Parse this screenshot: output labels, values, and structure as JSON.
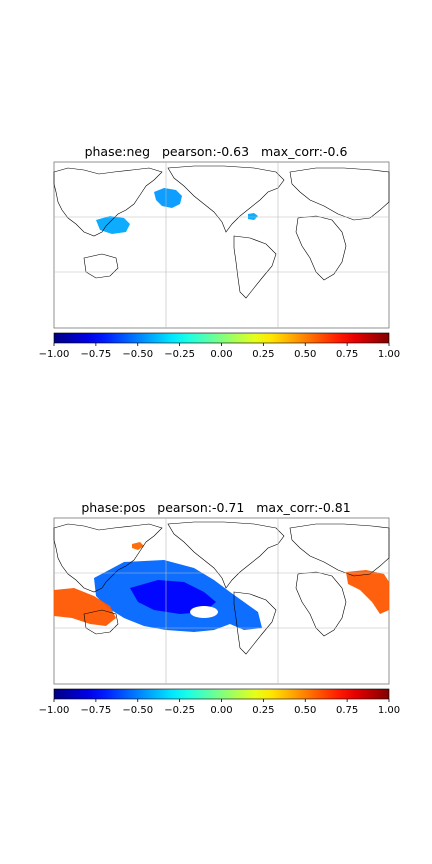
{
  "chart_data": [
    {
      "type": "heatmap",
      "title": "phase:neg   pearson:-0.63   max_corr:-0.6",
      "map": "world-correlation-map",
      "colormap": "jet",
      "colorbar": {
        "vmin": -1.0,
        "vmax": 1.0,
        "ticks": [
          -1.0,
          -0.75,
          -0.5,
          -0.25,
          0.0,
          0.25,
          0.5,
          0.75,
          1.0
        ],
        "tick_labels": [
          "−1.00",
          "−0.75",
          "−0.50",
          "−0.25",
          "0.00",
          "0.25",
          "0.50",
          "0.75",
          "1.00"
        ]
      },
      "grid": true,
      "patches": [
        {
          "region": "north-pacific-gulf-of-alaska",
          "value": -0.45
        },
        {
          "region": "west-central-pacific",
          "value": -0.42
        },
        {
          "region": "north-atlantic-near-coast",
          "value": -0.42
        }
      ]
    },
    {
      "type": "heatmap",
      "title": "phase:pos   pearson:-0.71   max_corr:-0.81",
      "map": "world-correlation-map",
      "colormap": "jet",
      "colorbar": {
        "vmin": -1.0,
        "vmax": 1.0,
        "ticks": [
          -1.0,
          -0.75,
          -0.5,
          -0.25,
          0.0,
          0.25,
          0.5,
          0.75,
          1.0
        ],
        "tick_labels": [
          "−1.00",
          "−0.75",
          "−0.50",
          "−0.25",
          "0.00",
          "0.25",
          "0.50",
          "0.75",
          "1.00"
        ]
      },
      "grid": true,
      "patches": [
        {
          "region": "tropical-pacific-tongue",
          "value": -0.55
        },
        {
          "region": "central-equatorial-pacific-core",
          "value": -0.75
        },
        {
          "region": "indonesia-australia",
          "value": 0.58
        },
        {
          "region": "eastern-africa-indian-ocean",
          "value": 0.58
        },
        {
          "region": "siberia-small",
          "value": 0.55
        }
      ]
    }
  ]
}
